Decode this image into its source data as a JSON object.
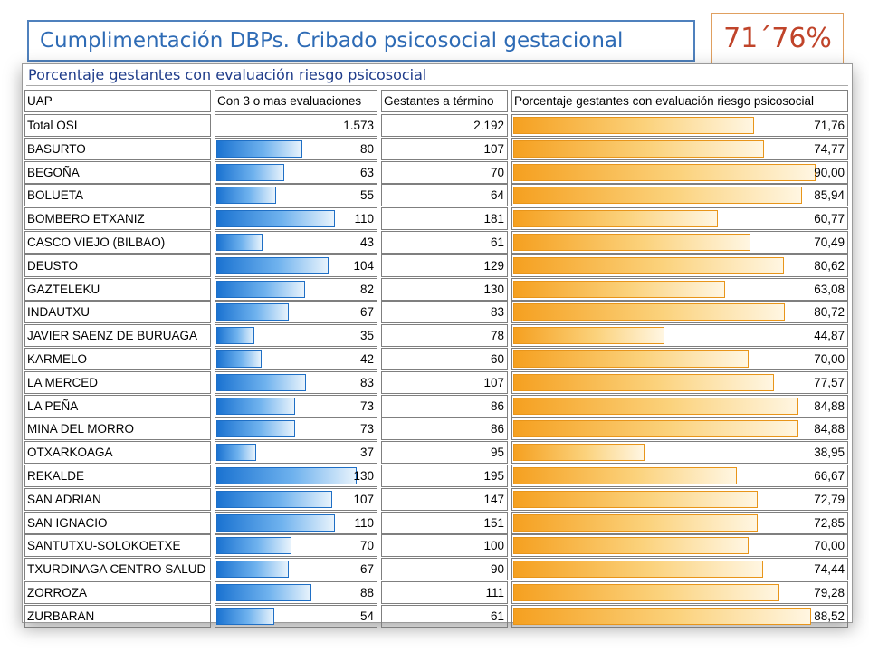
{
  "header": {
    "title": "Cumplimentación DBPs. Cribado psicosocial gestacional",
    "total_percent": "71´76%"
  },
  "chart_data": {
    "type": "table",
    "title": "Porcentaje gestantes con evaluación riesgo psicosocial",
    "columns": [
      "UAP",
      "Con 3 o mas evaluaciones",
      "Gestantes a término",
      "Porcentaje gestantes con evaluación riesgo psicosocial"
    ],
    "bar_max": {
      "evaluations": 130,
      "percent": 90
    },
    "colors": {
      "blue_bar": "#1b73d1",
      "orange_bar": "#f5a020"
    },
    "rows": [
      {
        "name": "Total OSI",
        "evaluations": 1573,
        "evaluations_label": "1.573",
        "term": 2192,
        "term_label": "2.192",
        "percent": 71.76,
        "percent_label": "71,76",
        "bar_blue": false
      },
      {
        "name": "BASURTO",
        "evaluations": 80,
        "evaluations_label": "80",
        "term": 107,
        "term_label": "107",
        "percent": 74.77,
        "percent_label": "74,77",
        "bar_blue": true
      },
      {
        "name": "BEGOÑA",
        "evaluations": 63,
        "evaluations_label": "63",
        "term": 70,
        "term_label": "70",
        "percent": 90.0,
        "percent_label": "90,00",
        "bar_blue": true
      },
      {
        "name": "BOLUETA",
        "evaluations": 55,
        "evaluations_label": "55",
        "term": 64,
        "term_label": "64",
        "percent": 85.94,
        "percent_label": "85,94",
        "bar_blue": true
      },
      {
        "name": "BOMBERO ETXANIZ",
        "evaluations": 110,
        "evaluations_label": "110",
        "term": 181,
        "term_label": "181",
        "percent": 60.77,
        "percent_label": "60,77",
        "bar_blue": true
      },
      {
        "name": "CASCO VIEJO (BILBAO)",
        "evaluations": 43,
        "evaluations_label": "43",
        "term": 61,
        "term_label": "61",
        "percent": 70.49,
        "percent_label": "70,49",
        "bar_blue": true
      },
      {
        "name": "DEUSTO",
        "evaluations": 104,
        "evaluations_label": "104",
        "term": 129,
        "term_label": "129",
        "percent": 80.62,
        "percent_label": "80,62",
        "bar_blue": true
      },
      {
        "name": "GAZTELEKU",
        "evaluations": 82,
        "evaluations_label": "82",
        "term": 130,
        "term_label": "130",
        "percent": 63.08,
        "percent_label": "63,08",
        "bar_blue": true
      },
      {
        "name": "INDAUTXU",
        "evaluations": 67,
        "evaluations_label": "67",
        "term": 83,
        "term_label": "83",
        "percent": 80.72,
        "percent_label": "80,72",
        "bar_blue": true
      },
      {
        "name": "JAVIER SAENZ DE BURUAGA",
        "evaluations": 35,
        "evaluations_label": "35",
        "term": 78,
        "term_label": "78",
        "percent": 44.87,
        "percent_label": "44,87",
        "bar_blue": true
      },
      {
        "name": "KARMELO",
        "evaluations": 42,
        "evaluations_label": "42",
        "term": 60,
        "term_label": "60",
        "percent": 70.0,
        "percent_label": "70,00",
        "bar_blue": true
      },
      {
        "name": "LA MERCED",
        "evaluations": 83,
        "evaluations_label": "83",
        "term": 107,
        "term_label": "107",
        "percent": 77.57,
        "percent_label": "77,57",
        "bar_blue": true
      },
      {
        "name": "LA PEÑA",
        "evaluations": 73,
        "evaluations_label": "73",
        "term": 86,
        "term_label": "86",
        "percent": 84.88,
        "percent_label": "84,88",
        "bar_blue": true
      },
      {
        "name": "MINA DEL MORRO",
        "evaluations": 73,
        "evaluations_label": "73",
        "term": 86,
        "term_label": "86",
        "percent": 84.88,
        "percent_label": "84,88",
        "bar_blue": true
      },
      {
        "name": "OTXARKOAGA",
        "evaluations": 37,
        "evaluations_label": "37",
        "term": 95,
        "term_label": "95",
        "percent": 38.95,
        "percent_label": "38,95",
        "bar_blue": true
      },
      {
        "name": "REKALDE",
        "evaluations": 130,
        "evaluations_label": "130",
        "term": 195,
        "term_label": "195",
        "percent": 66.67,
        "percent_label": "66,67",
        "bar_blue": true
      },
      {
        "name": "SAN ADRIAN",
        "evaluations": 107,
        "evaluations_label": "107",
        "term": 147,
        "term_label": "147",
        "percent": 72.79,
        "percent_label": "72,79",
        "bar_blue": true
      },
      {
        "name": "SAN IGNACIO",
        "evaluations": 110,
        "evaluations_label": "110",
        "term": 151,
        "term_label": "151",
        "percent": 72.85,
        "percent_label": "72,85",
        "bar_blue": true
      },
      {
        "name": "SANTUTXU-SOLOKOETXE",
        "evaluations": 70,
        "evaluations_label": "70",
        "term": 100,
        "term_label": "100",
        "percent": 70.0,
        "percent_label": "70,00",
        "bar_blue": true
      },
      {
        "name": "TXURDINAGA CENTRO SALUD",
        "evaluations": 67,
        "evaluations_label": "67",
        "term": 90,
        "term_label": "90",
        "percent": 74.44,
        "percent_label": "74,44",
        "bar_blue": true
      },
      {
        "name": "ZORROZA",
        "evaluations": 88,
        "evaluations_label": "88",
        "term": 111,
        "term_label": "111",
        "percent": 79.28,
        "percent_label": "79,28",
        "bar_blue": true
      },
      {
        "name": "ZURBARAN",
        "evaluations": 54,
        "evaluations_label": "54",
        "term": 61,
        "term_label": "61",
        "percent": 88.52,
        "percent_label": "88,52",
        "bar_blue": true
      }
    ]
  }
}
